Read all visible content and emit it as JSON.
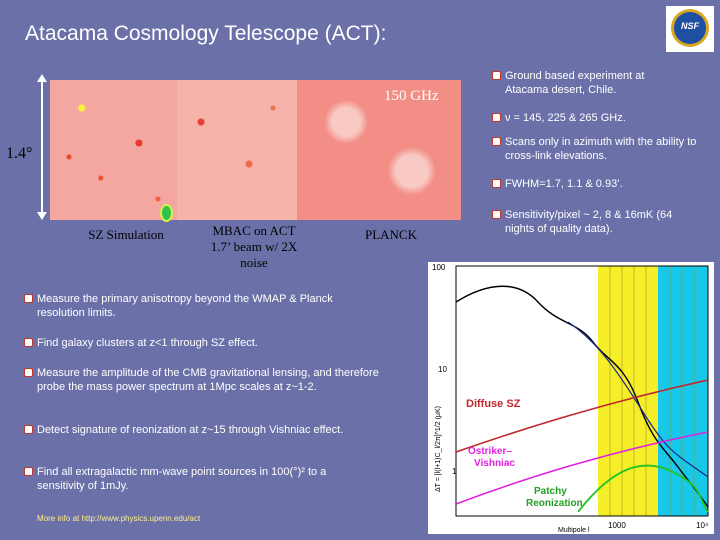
{
  "title": "Atacama Cosmology Telescope (ACT):",
  "logo": {
    "text": "NSF"
  },
  "maps": {
    "freq_label": "150 GHz",
    "size_label": "1.4°",
    "captions": {
      "sz_simulation": "SZ Simulation",
      "mbac_line1": "MBAC on ACT",
      "mbac_line2": "1.7’ beam w/ 2X",
      "mbac_line3": "noise",
      "planck": "PLANCK"
    }
  },
  "right_bullets": [
    {
      "line1": "Ground based experiment at",
      "line2": "Atacama desert, Chile."
    },
    {
      "line1": "ν = 145, 225 & 265 GHz.",
      "line2": ""
    },
    {
      "line1": "Scans only in azimuth with the ability to",
      "line2": "cross-link elevations."
    },
    {
      "line1": "FWHM=1.7, 1.1 & 0.93’.",
      "line2": ""
    },
    {
      "line1": "Sensitivity/pixel ~ 2, 8 & 16mK (64",
      "line2": "nights of quality data)."
    }
  ],
  "left_bullets": [
    {
      "line1": "Measure the primary anisotropy beyond the WMAP & Planck",
      "line2": "resolution limits."
    },
    {
      "line1": "Find galaxy clusters at z<1 through SZ effect.",
      "line2": ""
    },
    {
      "line1": "Measure the amplitude of the CMB gravitational lensing, and therefore",
      "line2": "probe the mass power spectrum at 1Mpc scales at z~1-2."
    },
    {
      "line1": "Detect signature of reonization at z~15 through Vishniac  effect.",
      "line2": ""
    },
    {
      "line1": "Find all extragalactic mm-wave point sources in 100(°)² to a",
      "line2": "sensitivity of 1mJy."
    }
  ],
  "footer": "More info at http://www.physics.upenn.edu/act",
  "plot": {
    "ylabel": "ΔT = [l(l+1)C_l/2π]^1/2 (μK)",
    "xlabel": "Multipole l",
    "ytick_top": "100",
    "ytick_mid": "10",
    "ytick_bot": "1",
    "xtick_1": "1000",
    "xtick_2": "10⁴",
    "label_sz": "Diffuse SZ",
    "label_ost1": "Ostriker–",
    "label_ost2": "Vishniac",
    "label_patchy1": "Patchy",
    "label_patchy2": "Reonization",
    "colors": {
      "sz": "#c1272d",
      "ost": "#e020e0",
      "patchy": "#22c422",
      "yellow": "#f7ee2a",
      "cyan": "#18c8e8"
    }
  }
}
